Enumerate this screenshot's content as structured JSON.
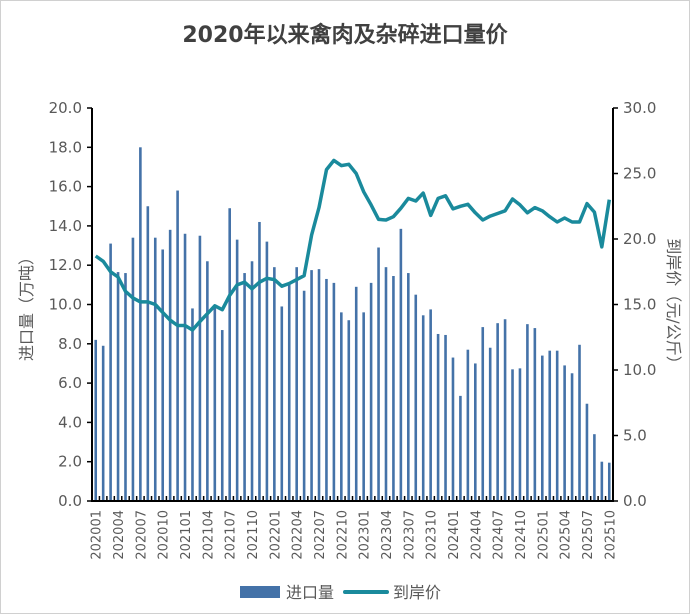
{
  "chart_data": {
    "type": "bar+line",
    "title": "2020年以来禽肉及杂碎进口量价",
    "ylabel_left": "进口量（万吨）",
    "ylabel_right": "到岸价（元/公斤）",
    "ylim_left": [
      0,
      20
    ],
    "ylim_right": [
      0,
      30
    ],
    "yticks_left": [
      "0.0",
      "2.0",
      "4.0",
      "6.0",
      "8.0",
      "10.0",
      "12.0",
      "14.0",
      "16.0",
      "18.0",
      "20.0"
    ],
    "yticks_right": [
      "0.0",
      "5.0",
      "10.0",
      "15.0",
      "20.0",
      "25.0",
      "30.0"
    ],
    "xtick_labels": [
      "202001",
      "202004",
      "202007",
      "202010",
      "202101",
      "202104",
      "202107",
      "202110",
      "202201",
      "202204",
      "202207",
      "202210",
      "202301",
      "202304",
      "202307",
      "202310",
      "202401",
      "202404",
      "202407",
      "202410",
      "202501",
      "202504",
      "202507",
      "202510"
    ],
    "grid": false,
    "legend_placement": "bottom",
    "categories": [
      "202001",
      "202002",
      "202003",
      "202004",
      "202005",
      "202006",
      "202007",
      "202008",
      "202009",
      "202010",
      "202011",
      "202012",
      "202101",
      "202102",
      "202103",
      "202104",
      "202105",
      "202106",
      "202107",
      "202108",
      "202109",
      "202110",
      "202111",
      "202112",
      "202201",
      "202202",
      "202203",
      "202204",
      "202205",
      "202206",
      "202207",
      "202208",
      "202209",
      "202210",
      "202211",
      "202212",
      "202301",
      "202302",
      "202303",
      "202304",
      "202305",
      "202306",
      "202307",
      "202308",
      "202309",
      "202310",
      "202311",
      "202312",
      "202401",
      "202402",
      "202403",
      "202404",
      "202405",
      "202406",
      "202407",
      "202408",
      "202409",
      "202410",
      "202411",
      "202412",
      "202501",
      "202502",
      "202503",
      "202504",
      "202505",
      "202506",
      "202507",
      "202508",
      "202509",
      "202510"
    ],
    "series": [
      {
        "name": "进口量",
        "type": "bar",
        "axis": "left",
        "color": "#4472a8",
        "values": [
          8.2,
          7.9,
          13.1,
          11.65,
          11.6,
          13.4,
          18.0,
          15.0,
          13.4,
          12.8,
          13.8,
          15.8,
          13.6,
          9.8,
          13.5,
          12.2,
          10.0,
          8.7,
          14.9,
          13.3,
          11.6,
          12.2,
          14.2,
          13.2,
          11.9,
          9.9,
          11.1,
          11.9,
          10.7,
          11.75,
          11.8,
          11.3,
          11.1,
          9.6,
          9.2,
          10.9,
          9.6,
          11.1,
          12.9,
          11.9,
          11.45,
          13.85,
          11.6,
          10.5,
          9.45,
          9.75,
          8.5,
          8.45,
          7.3,
          5.35,
          7.7,
          7.0,
          8.85,
          7.8,
          9.05,
          9.25,
          6.7,
          6.75,
          9.0,
          8.8,
          7.4,
          7.65,
          7.65,
          6.9,
          6.5,
          7.95,
          4.95,
          3.4,
          2.0,
          1.95
        ]
      },
      {
        "name": "到岸价",
        "type": "line",
        "axis": "right",
        "color": "#1a8a9c",
        "values": [
          18.7,
          18.3,
          17.5,
          17.1,
          16.0,
          15.5,
          15.2,
          15.2,
          15.0,
          14.4,
          13.8,
          13.4,
          13.4,
          13.05,
          13.7,
          14.3,
          14.9,
          14.6,
          15.7,
          16.5,
          16.7,
          16.2,
          16.7,
          17.0,
          16.9,
          16.4,
          16.6,
          16.9,
          17.2,
          20.3,
          22.4,
          25.3,
          26.0,
          25.6,
          25.7,
          25.0,
          23.6,
          22.6,
          21.5,
          21.45,
          21.7,
          22.35,
          23.1,
          22.9,
          23.5,
          21.8,
          23.1,
          23.3,
          22.3,
          22.5,
          22.65,
          22.0,
          21.45,
          21.75,
          21.95,
          22.15,
          23.05,
          22.6,
          22.0,
          22.4,
          22.15,
          21.7,
          21.3,
          21.6,
          21.3,
          21.3,
          22.7,
          22.05,
          19.4,
          23.0
        ]
      }
    ]
  }
}
